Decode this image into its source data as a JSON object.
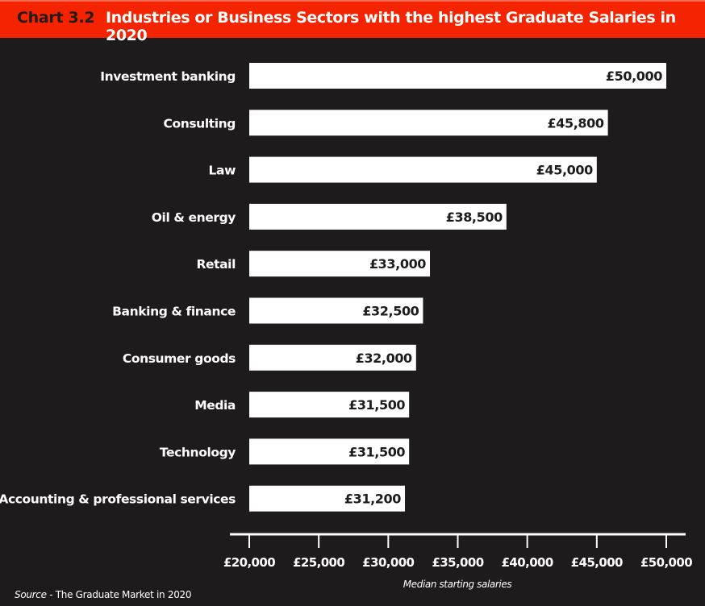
{
  "chart_data": {
    "type": "bar",
    "orientation": "horizontal",
    "chart_number": "Chart 3.2",
    "title": "Industries or Business Sectors with the highest Graduate Salaries in 2020",
    "categories": [
      "Investment banking",
      "Consulting",
      "Law",
      "Oil & energy",
      "Retail",
      "Banking & finance",
      "Consumer goods",
      "Media",
      "Technology",
      "Accounting & professional services"
    ],
    "values": [
      50000,
      45800,
      45000,
      38500,
      33000,
      32500,
      32000,
      31500,
      31500,
      31200
    ],
    "data_labels": [
      "£50,000",
      "£45,800",
      "£45,000",
      "£38,500",
      "£33,000",
      "£32,500",
      "£32,000",
      "£31,500",
      "£31,500",
      "£31,200"
    ],
    "xlabel": "Median starting salaries",
    "xlim": [
      20000,
      50000
    ],
    "xticks": [
      20000,
      25000,
      30000,
      35000,
      40000,
      45000,
      50000
    ],
    "xtick_labels": [
      "£20,000",
      "£25,000",
      "£30,000",
      "£35,000",
      "£40,000",
      "£45,000",
      "£50,000"
    ],
    "grid": false,
    "colors": {
      "bar": "#ffffff",
      "background": "#1d1b1c",
      "title_bar": "#f42300"
    }
  },
  "source": {
    "label": "Source",
    "text": " - The Graduate Market in 2020"
  }
}
